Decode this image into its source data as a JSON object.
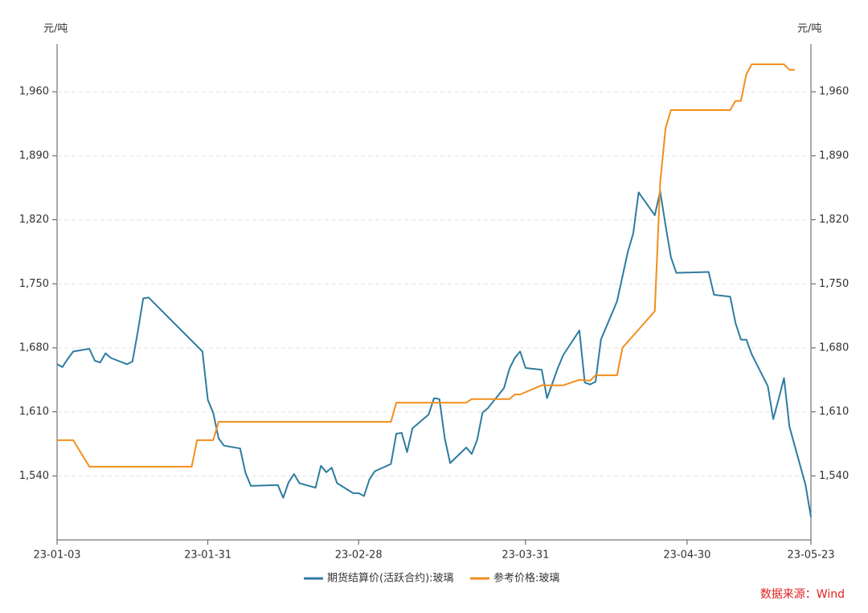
{
  "chart_data": {
    "type": "line",
    "y_label": "元/吨",
    "y2_label": "元/吨",
    "source": "数据来源：Wind",
    "ylim": [
      1470,
      2012
    ],
    "yticks": [
      {
        "value": 1540,
        "label": "1,540"
      },
      {
        "value": 1610,
        "label": "1,610"
      },
      {
        "value": 1680,
        "label": "1,680"
      },
      {
        "value": 1750,
        "label": "1,750"
      },
      {
        "value": 1820,
        "label": "1,820"
      },
      {
        "value": 1890,
        "label": "1,890"
      },
      {
        "value": 1960,
        "label": "1,960"
      }
    ],
    "y2lim": [
      1470,
      2012
    ],
    "y2ticks": [
      {
        "value": 1540,
        "label": "1,540"
      },
      {
        "value": 1610,
        "label": "1,610"
      },
      {
        "value": 1680,
        "label": "1,680"
      },
      {
        "value": 1750,
        "label": "1,750"
      },
      {
        "value": 1820,
        "label": "1,820"
      },
      {
        "value": 1890,
        "label": "1,890"
      },
      {
        "value": 1960,
        "label": "1,960"
      }
    ],
    "xlim": [
      "23-01-03",
      "23-05-23"
    ],
    "xticks": [
      "23-01-03",
      "23-01-31",
      "23-02-28",
      "23-03-31",
      "23-04-30",
      "23-05-23"
    ],
    "grid": true,
    "legend": "bottom",
    "series": [
      {
        "name": "期货结算价(活跃合约):玻璃",
        "color": "#2e7ca0",
        "x": [
          "23-01-03",
          "23-01-04",
          "23-01-05",
          "23-01-06",
          "23-01-09",
          "23-01-10",
          "23-01-11",
          "23-01-12",
          "23-01-13",
          "23-01-16",
          "23-01-17",
          "23-01-18",
          "23-01-19",
          "23-01-20",
          "23-01-30",
          "23-01-31",
          "23-02-01",
          "23-02-02",
          "23-02-03",
          "23-02-06",
          "23-02-07",
          "23-02-08",
          "23-02-13",
          "23-02-14",
          "23-02-15",
          "23-02-16",
          "23-02-17",
          "23-02-20",
          "23-02-21",
          "23-02-22",
          "23-02-23",
          "23-02-24",
          "23-02-27",
          "23-02-28",
          "23-03-01",
          "23-03-02",
          "23-03-03",
          "23-03-06",
          "23-03-07",
          "23-03-08",
          "23-03-09",
          "23-03-10",
          "23-03-13",
          "23-03-14",
          "23-03-15",
          "23-03-16",
          "23-03-17",
          "23-03-20",
          "23-03-21",
          "23-03-22",
          "23-03-23",
          "23-03-24",
          "23-03-27",
          "23-03-28",
          "23-03-29",
          "23-03-30",
          "23-03-31",
          "23-04-03",
          "23-04-04",
          "23-04-06",
          "23-04-07",
          "23-04-10",
          "23-04-11",
          "23-04-12",
          "23-04-13",
          "23-04-14",
          "23-04-17",
          "23-04-19",
          "23-04-20",
          "23-04-21",
          "23-04-24",
          "23-04-25",
          "23-04-26",
          "23-04-27",
          "23-04-28",
          "23-05-04",
          "23-05-05",
          "23-05-08",
          "23-05-09",
          "23-05-10",
          "23-05-11",
          "23-05-12",
          "23-05-15",
          "23-05-16",
          "23-05-17",
          "23-05-18",
          "23-05-19",
          "23-05-22",
          "23-05-23"
        ],
        "values": [
          1662,
          1659,
          1668,
          1676,
          1679,
          1666,
          1664,
          1674,
          1669,
          1662,
          1665,
          1698,
          1734,
          1735,
          1676,
          1623,
          1609,
          1581,
          1573,
          1570,
          1543,
          1529,
          1530,
          1516,
          1533,
          1542,
          1532,
          1527,
          1551,
          1544,
          1549,
          1532,
          1521,
          1521,
          1518,
          1536,
          1545,
          1553,
          1586,
          1587,
          1566,
          1592,
          1607,
          1625,
          1624,
          1581,
          1554,
          1571,
          1564,
          1579,
          1609,
          1614,
          1636,
          1657,
          1669,
          1676,
          1658,
          1656,
          1625,
          1658,
          1672,
          1699,
          1642,
          1640,
          1643,
          1689,
          1731,
          1785,
          1805,
          1850,
          1825,
          1851,
          1814,
          1779,
          1762,
          1763,
          1738,
          1736,
          1707,
          1689,
          1689,
          1673,
          1638,
          1602,
          1624,
          1647,
          1594,
          1530,
          1495
        ]
      },
      {
        "name": "参考价格:玻璃",
        "color": "#f28e1c",
        "x": [
          "23-01-03",
          "23-01-06",
          "23-01-09",
          "23-01-28",
          "23-01-29",
          "23-02-01",
          "23-02-02",
          "23-03-06",
          "23-03-07",
          "23-03-20",
          "23-03-21",
          "23-03-28",
          "23-03-29",
          "23-03-30",
          "23-04-03",
          "23-04-07",
          "23-04-10",
          "23-04-12",
          "23-04-13",
          "23-04-17",
          "23-04-18",
          "23-04-24",
          "23-04-25",
          "23-04-26",
          "23-04-27",
          "23-05-08",
          "23-05-09",
          "23-05-10",
          "23-05-11",
          "23-05-12",
          "23-05-18",
          "23-05-19",
          "23-05-20"
        ],
        "values": [
          1579,
          1579,
          1550,
          1550,
          1579,
          1579,
          1599,
          1599,
          1620,
          1620,
          1624,
          1624,
          1629,
          1629,
          1639,
          1639,
          1645,
          1644,
          1650,
          1650,
          1680,
          1720,
          1860,
          1920,
          1940,
          1940,
          1950,
          1950,
          1979,
          1990,
          1990,
          1984,
          1984
        ]
      }
    ]
  }
}
